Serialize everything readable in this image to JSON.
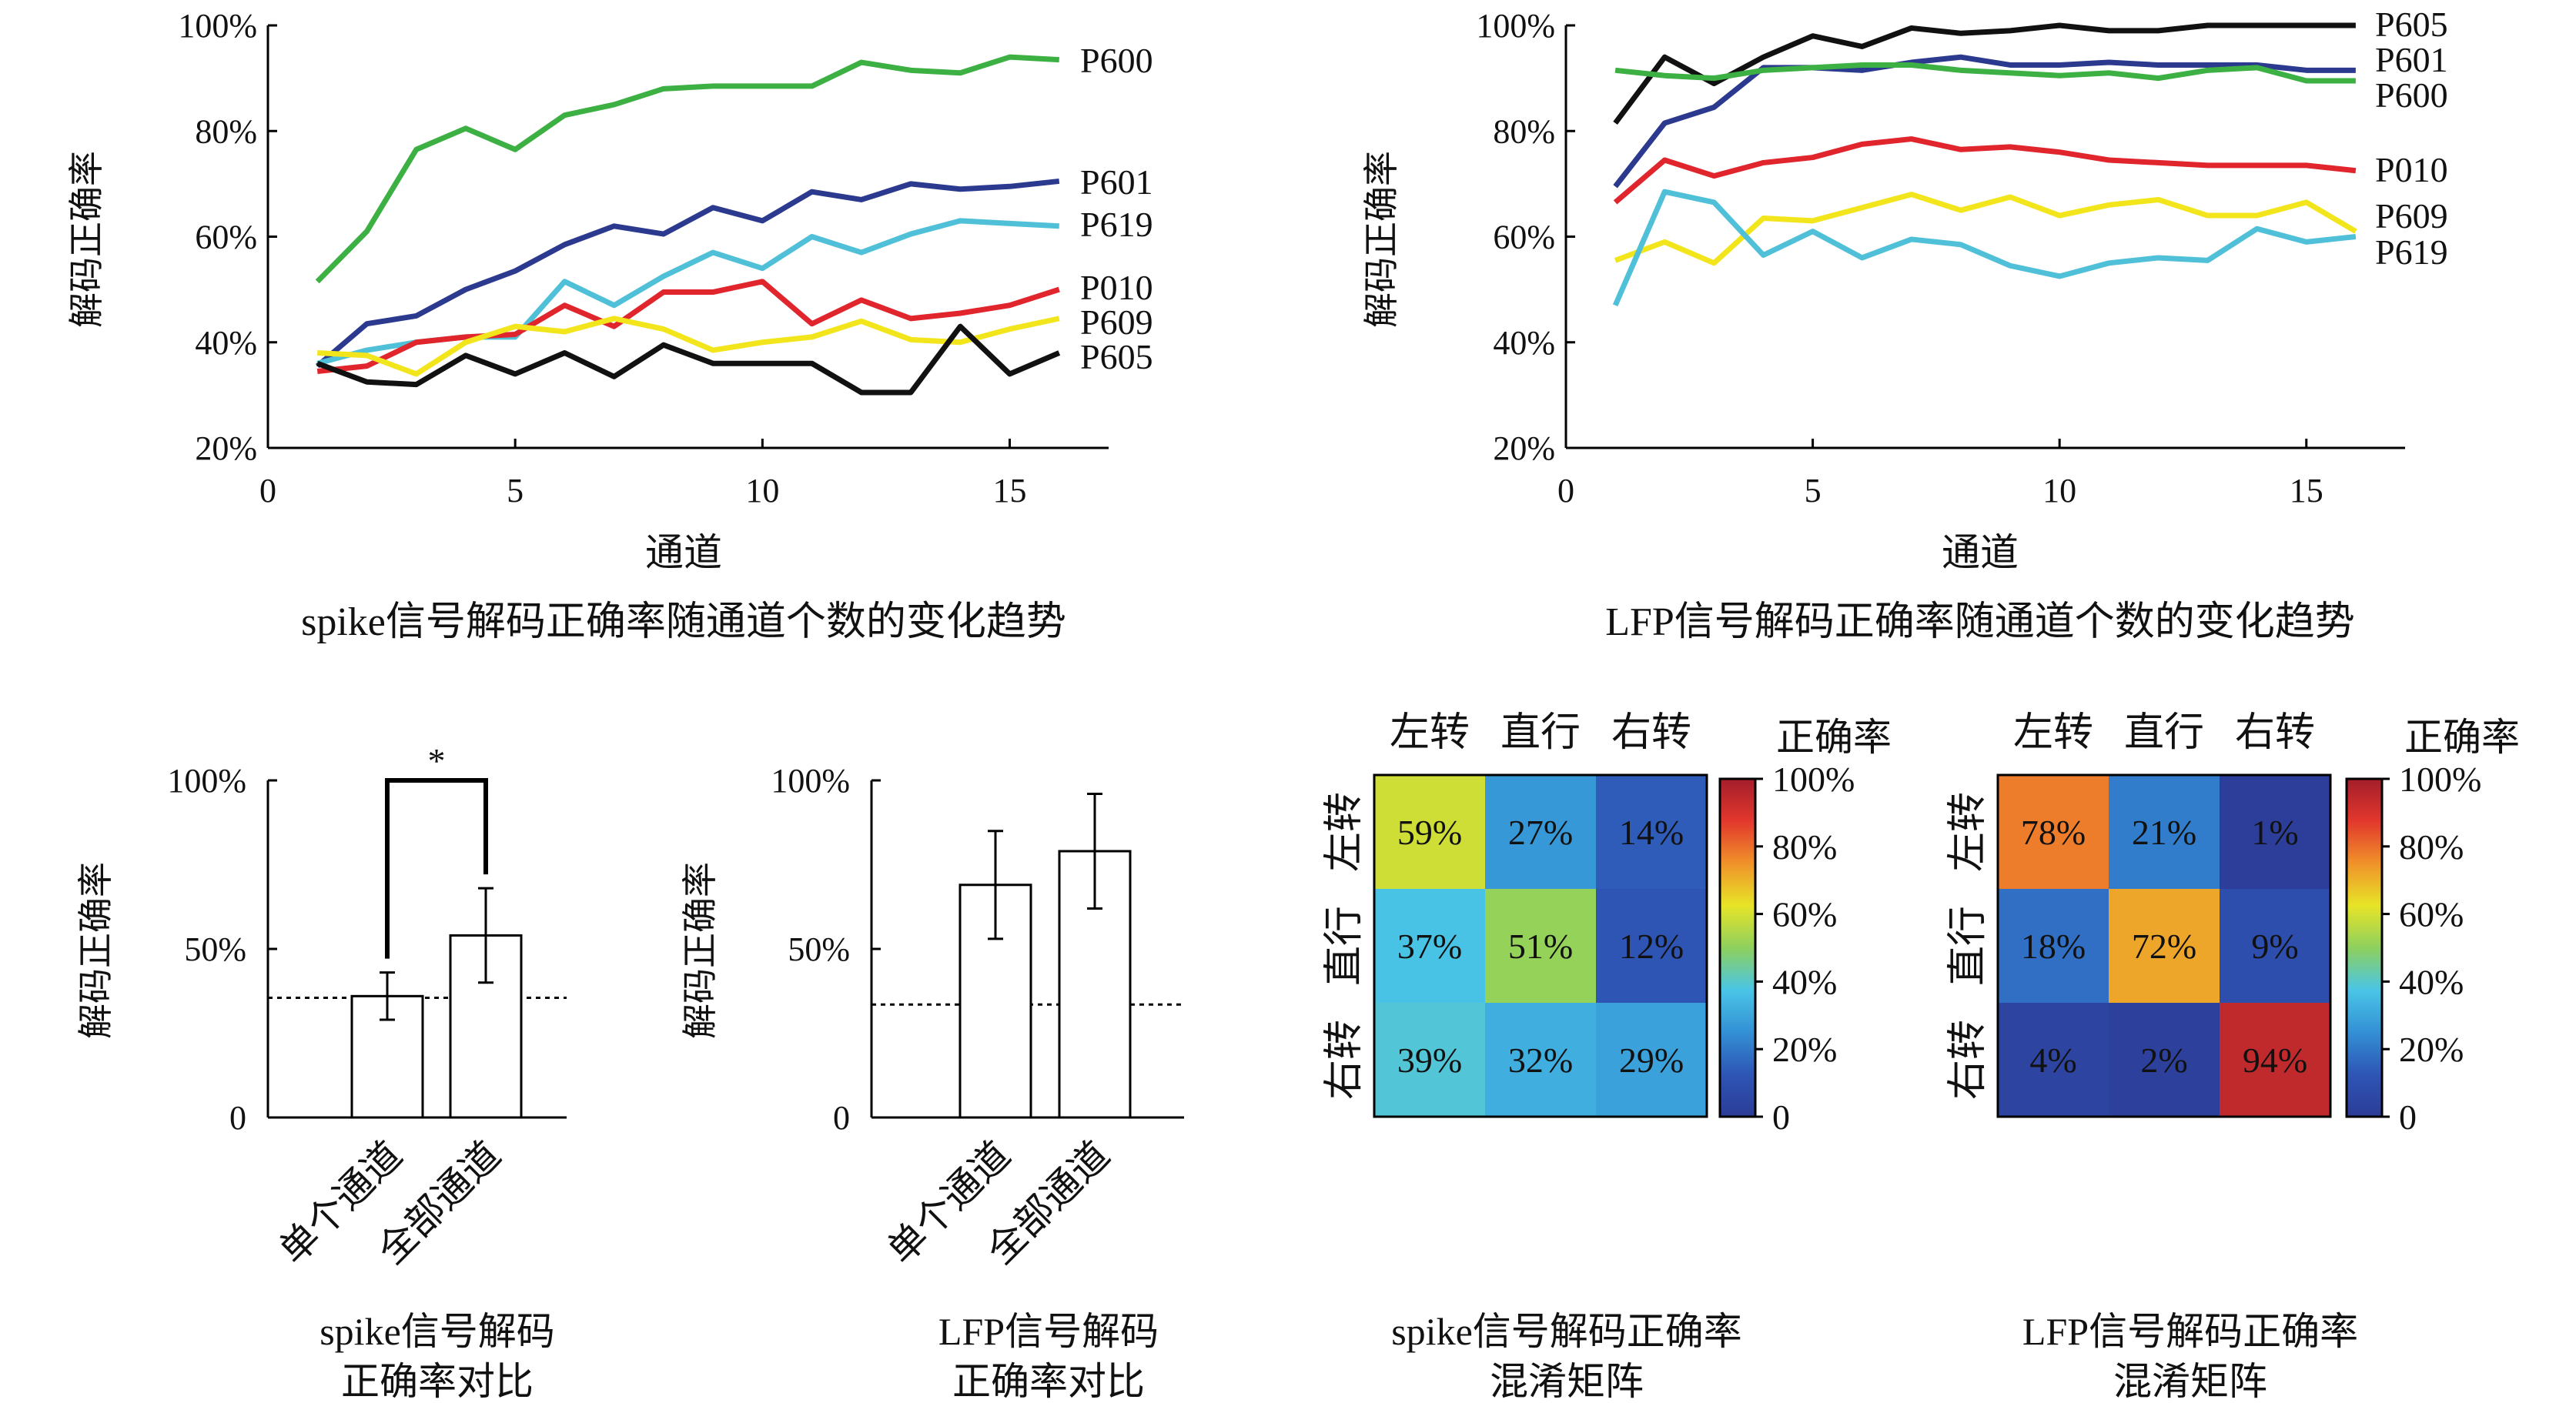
{
  "chart_data": [
    {
      "type": "line",
      "title": "spike信号解码正确率随通道个数的变化趋势",
      "xlabel": "通道",
      "ylabel": "解码正确率",
      "xlim": [
        0,
        17
      ],
      "ylim": [
        20,
        100
      ],
      "xticks": [
        "0",
        "5",
        "10",
        "15"
      ],
      "yticks": [
        "20%",
        "40%",
        "60%",
        "80%",
        "100%"
      ],
      "x": [
        1,
        2,
        3,
        4,
        5,
        6,
        7,
        8,
        9,
        10,
        11,
        12,
        13,
        14,
        15,
        16
      ],
      "series": [
        {
          "name": "P600",
          "color": "#3cb043",
          "values": [
            51.5,
            61,
            76.5,
            80.5,
            76.5,
            83,
            85,
            88,
            88.5,
            88.5,
            88.5,
            93,
            91.5,
            91,
            94,
            93.5
          ]
        },
        {
          "name": "P601",
          "color": "#2b3a8f",
          "values": [
            35.5,
            43.5,
            45,
            50,
            53.5,
            58.5,
            62,
            60.5,
            65.5,
            63,
            68.5,
            67,
            70,
            69,
            69.5,
            70.5
          ]
        },
        {
          "name": "P619",
          "color": "#4fc0d8",
          "values": [
            36,
            38.5,
            40,
            41,
            41,
            51.5,
            47,
            52.5,
            57,
            54,
            60,
            57,
            60.5,
            63,
            62.5,
            62
          ]
        },
        {
          "name": "P010",
          "color": "#e0252c",
          "values": [
            34.5,
            35.5,
            40,
            41,
            41.5,
            47,
            43,
            49.5,
            49.5,
            51.5,
            43.5,
            48,
            44.5,
            45.5,
            47,
            50
          ]
        },
        {
          "name": "P609",
          "color": "#f2e51c",
          "labelColor": "#d88a1f",
          "values": [
            38,
            37.5,
            34,
            40,
            43,
            42,
            44.5,
            42.5,
            38.5,
            40,
            41,
            44,
            40.5,
            40,
            42.5,
            44.5
          ]
        },
        {
          "name": "P605",
          "color": "#111111",
          "values": [
            36,
            32.5,
            32,
            37.5,
            34,
            38,
            33.5,
            39.5,
            36,
            36,
            36,
            30.5,
            30.5,
            43,
            34,
            38
          ]
        }
      ]
    },
    {
      "type": "line",
      "title": "LFP信号解码正确率随通道个数的变化趋势",
      "xlabel": "通道",
      "ylabel": "解码正确率",
      "xlim": [
        0,
        17
      ],
      "ylim": [
        20,
        100
      ],
      "xticks": [
        "0",
        "5",
        "10",
        "15"
      ],
      "yticks": [
        "20%",
        "40%",
        "60%",
        "80%",
        "100%"
      ],
      "x": [
        1,
        2,
        3,
        4,
        5,
        6,
        7,
        8,
        9,
        10,
        11,
        12,
        13,
        14,
        15,
        16
      ],
      "series": [
        {
          "name": "P605",
          "color": "#111111",
          "values": [
            81.5,
            94,
            89,
            94,
            98,
            96,
            99.5,
            98.5,
            99,
            100,
            99,
            99,
            100,
            100,
            100,
            100
          ]
        },
        {
          "name": "P601",
          "color": "#2b3a8f",
          "values": [
            69.5,
            81.5,
            84.5,
            92,
            92,
            91.5,
            93,
            94,
            92.5,
            92.5,
            93,
            92.5,
            92.5,
            92.5,
            91.5,
            91.5
          ]
        },
        {
          "name": "P600",
          "color": "#3cb043",
          "values": [
            91.5,
            90.5,
            90,
            91.5,
            92,
            92.5,
            92.5,
            91.5,
            91,
            90.5,
            91,
            90,
            91.5,
            92,
            89.5,
            89.5
          ]
        },
        {
          "name": "P010",
          "color": "#e0252c",
          "values": [
            66.5,
            74.5,
            71.5,
            74,
            75,
            77.5,
            78.5,
            76.5,
            77,
            76,
            74.5,
            74,
            73.5,
            73.5,
            73.5,
            72.5
          ]
        },
        {
          "name": "P609",
          "color": "#f2e51c",
          "labelColor": "#d88a1f",
          "values": [
            55.5,
            59,
            55,
            63.5,
            63,
            65.5,
            68,
            65,
            67.5,
            64,
            66,
            67,
            64,
            64,
            66.5,
            61
          ]
        },
        {
          "name": "P619",
          "color": "#4fc0d8",
          "values": [
            47,
            68.5,
            66.5,
            56.5,
            61,
            56,
            59.5,
            58.5,
            54.5,
            52.5,
            55,
            56,
            55.5,
            61.5,
            59,
            60
          ]
        }
      ]
    },
    {
      "type": "bar",
      "title": [
        "spike信号解码",
        "正确率对比"
      ],
      "ylabel": "解码正确率",
      "categories": [
        "单个通道",
        "全部通道"
      ],
      "values": [
        36,
        54
      ],
      "error": [
        7,
        14
      ],
      "ylim": [
        0,
        100
      ],
      "yticks": [
        "0",
        "50%",
        "100%"
      ],
      "chance_level": 35.5,
      "significance": "*"
    },
    {
      "type": "bar",
      "title": [
        "LFP信号解码",
        "正确率对比"
      ],
      "ylabel": "解码正确率",
      "categories": [
        "单个通道",
        "全部通道"
      ],
      "values": [
        69,
        79
      ],
      "error": [
        16,
        17
      ],
      "ylim": [
        0,
        100
      ],
      "yticks": [
        "0",
        "50%",
        "100%"
      ],
      "chance_level": 33.5
    },
    {
      "type": "heatmap",
      "title": [
        "spike信号解码正确率",
        "混淆矩阵"
      ],
      "columns": [
        "左转",
        "直行",
        "右转"
      ],
      "rows": [
        "左转",
        "直行",
        "右转"
      ],
      "values": [
        [
          59,
          27,
          14
        ],
        [
          37,
          51,
          12
        ],
        [
          39,
          32,
          29
        ]
      ],
      "labels": [
        [
          "59%",
          "27%",
          "14%"
        ],
        [
          "37%",
          "51%",
          "12%"
        ],
        [
          "39%",
          "32%",
          "29%"
        ]
      ],
      "label_color": "#e0252c",
      "colorbar": {
        "title": "正确率",
        "ticks": [
          "100%",
          "80%",
          "60%",
          "40%",
          "20%",
          "0"
        ]
      }
    },
    {
      "type": "heatmap",
      "title": [
        "LFP信号解码正确率",
        "混淆矩阵"
      ],
      "columns": [
        "左转",
        "直行",
        "右转"
      ],
      "rows": [
        "左转",
        "直行",
        "右转"
      ],
      "values": [
        [
          78,
          21,
          1
        ],
        [
          18,
          72,
          9
        ],
        [
          4,
          2,
          94
        ]
      ],
      "labels": [
        [
          "78%",
          "21%",
          "1%"
        ],
        [
          "18%",
          "72%",
          "9%"
        ],
        [
          "4%",
          "2%",
          "94%"
        ]
      ],
      "label_color": "#ffffff",
      "colorbar": {
        "title": "正确率",
        "ticks": [
          "100%",
          "80%",
          "60%",
          "40%",
          "20%",
          "0"
        ]
      }
    }
  ]
}
